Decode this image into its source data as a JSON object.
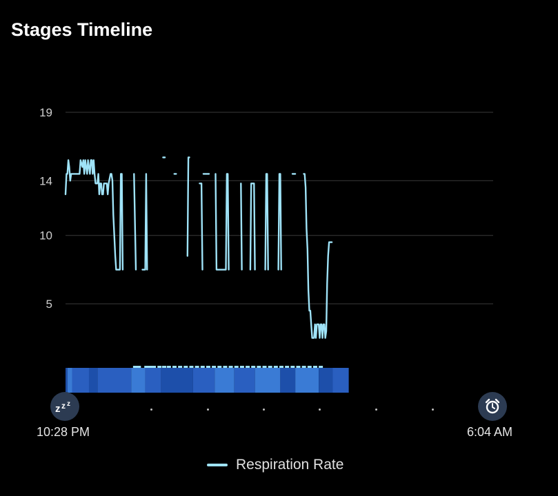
{
  "header": {
    "title": "Stages Timeline"
  },
  "chart_data": {
    "type": "line",
    "title": "Stages Timeline",
    "ylabel": "",
    "xlabel": "",
    "ylim": [
      0,
      19
    ],
    "yticks": [
      "19",
      "14",
      "10",
      "5"
    ],
    "ytick_values": [
      19,
      14,
      10,
      5
    ],
    "x_start_label": "10:28 PM",
    "x_end_label": "6:04 AM",
    "x_time_start": "22:28",
    "x_time_end": "06:04",
    "grid": true,
    "legend": "bottom",
    "series": [
      {
        "name": "Respiration Rate",
        "color": "#9fe3f8",
        "segments": [
          [
            [
              "22:28",
              13.0
            ],
            [
              "22:29",
              14.5
            ],
            [
              "22:30",
              14.5
            ],
            [
              "22:31",
              15.5
            ],
            [
              "22:32",
              15.0
            ],
            [
              "22:33",
              14.0
            ],
            [
              "22:34",
              14.5
            ],
            [
              "22:35",
              14.5
            ],
            [
              "22:40",
              14.5
            ],
            [
              "22:43",
              14.5
            ],
            [
              "22:44",
              15.5
            ],
            [
              "22:46",
              15.0
            ],
            [
              "22:47",
              15.5
            ],
            [
              "22:48",
              14.5
            ],
            [
              "22:49",
              15.5
            ],
            [
              "22:51",
              14.5
            ],
            [
              "22:52",
              15.5
            ],
            [
              "22:54",
              14.5
            ],
            [
              "22:55",
              15.5
            ],
            [
              "22:56",
              15.5
            ],
            [
              "22:57",
              14.5
            ],
            [
              "22:58",
              15.5
            ],
            [
              "22:59",
              14.5
            ],
            [
              "23:00",
              13.8
            ],
            [
              "23:02",
              13.8
            ],
            [
              "23:03",
              14.5
            ],
            [
              "23:04",
              13.0
            ],
            [
              "23:05",
              13.8
            ],
            [
              "23:06",
              13.8
            ],
            [
              "23:07",
              13.0
            ],
            [
              "23:08",
              13.0
            ],
            [
              "23:09",
              13.8
            ],
            [
              "23:12",
              13.8
            ],
            [
              "23:13",
              13.0
            ],
            [
              "23:14",
              13.8
            ],
            [
              "23:16",
              14.5
            ],
            [
              "23:17",
              14.5
            ],
            [
              "23:18",
              14.0
            ],
            [
              "23:19",
              11.5
            ],
            [
              "23:20",
              10.0
            ],
            [
              "23:21",
              8.5
            ],
            [
              "23:22",
              7.5
            ],
            [
              "23:23",
              7.5
            ],
            [
              "23:24",
              7.5
            ],
            [
              "23:25",
              7.5
            ],
            [
              "23:26",
              7.5
            ],
            [
              "23:27",
              14.5
            ],
            [
              "23:28",
              14.5
            ],
            [
              "23:29",
              7.5
            ]
          ],
          [
            [
              "23:41",
              14.5
            ],
            [
              "23:43",
              7.5
            ]
          ],
          [
            [
              "23:50",
              7.5
            ],
            [
              "23:53",
              7.5
            ],
            [
              "23:54",
              14.5
            ],
            [
              "23:55",
              7.5
            ]
          ],
          [
            [
              "00:12",
              15.7
            ],
            [
              "00:14",
              15.7
            ]
          ],
          [
            [
              "00:24",
              14.5
            ],
            [
              "00:26",
              14.5
            ]
          ],
          [
            [
              "00:38",
              8.5
            ],
            [
              "00:39",
              15.7
            ],
            [
              "00:40",
              15.7
            ]
          ],
          [
            [
              "00:51",
              13.8
            ],
            [
              "00:53",
              13.8
            ],
            [
              "00:54",
              7.5
            ]
          ],
          [
            [
              "00:55",
              14.5
            ],
            [
              "00:56",
              14.5
            ],
            [
              "01:01",
              14.5
            ]
          ],
          [
            [
              "01:08",
              14.5
            ],
            [
              "01:09",
              7.5
            ],
            [
              "01:10",
              7.5
            ],
            [
              "01:19",
              7.5
            ],
            [
              "01:20",
              14.5
            ],
            [
              "01:21",
              14.5
            ],
            [
              "01:22",
              7.5
            ]
          ],
          [
            [
              "01:35",
              13.8
            ],
            [
              "01:36",
              7.5
            ]
          ],
          [
            [
              "01:45",
              7.5
            ],
            [
              "01:46",
              13.8
            ],
            [
              "01:49",
              13.8
            ],
            [
              "01:50",
              7.5
            ]
          ],
          [
            [
              "02:01",
              7.5
            ],
            [
              "02:02",
              14.5
            ],
            [
              "02:03",
              14.5
            ],
            [
              "02:04",
              7.5
            ]
          ],
          [
            [
              "02:15",
              7.5
            ],
            [
              "02:16",
              14.5
            ],
            [
              "02:17",
              14.5
            ],
            [
              "02:18",
              7.5
            ]
          ],
          [
            [
              "02:30",
              14.5
            ],
            [
              "02:33",
              14.5
            ]
          ],
          [
            [
              "02:42",
              14.5
            ],
            [
              "02:43",
              14.5
            ],
            [
              "02:44",
              13.5
            ],
            [
              "02:45",
              10.5
            ],
            [
              "02:46",
              9.0
            ],
            [
              "02:47",
              6.0
            ],
            [
              "02:48",
              4.5
            ],
            [
              "02:49",
              4.5
            ],
            [
              "02:50",
              3.5
            ],
            [
              "02:51",
              2.5
            ],
            [
              "02:52",
              2.5
            ],
            [
              "02:53",
              2.5
            ],
            [
              "02:54",
              3.5
            ],
            [
              "02:55",
              2.5
            ],
            [
              "02:56",
              3.5
            ],
            [
              "02:57",
              3.5
            ],
            [
              "02:58",
              3.5
            ],
            [
              "02:59",
              2.5
            ],
            [
              "03:00",
              3.5
            ],
            [
              "03:01",
              3.5
            ],
            [
              "03:02",
              2.5
            ],
            [
              "03:03",
              3.5
            ],
            [
              "03:04",
              3.5
            ],
            [
              "03:05",
              2.5
            ],
            [
              "03:06",
              3.0
            ],
            [
              "03:07",
              6.5
            ],
            [
              "03:08",
              8.5
            ],
            [
              "03:09",
              9.5
            ],
            [
              "03:10",
              9.5
            ],
            [
              "03:12",
              9.5
            ]
          ]
        ]
      }
    ],
    "stage_bar": {
      "segments": [
        [
          "22:28",
          "22:30",
          "#1d4faa"
        ],
        [
          "22:30",
          "22:35",
          "#3a7bd5"
        ],
        [
          "22:35",
          "22:53",
          "#2a5fc0"
        ],
        [
          "22:53",
          "23:02",
          "#1d4faa"
        ],
        [
          "23:02",
          "23:38",
          "#2a5fc0"
        ],
        [
          "23:38",
          "23:53",
          "#3a7bd5"
        ],
        [
          "23:53",
          "24:10",
          "#2a5fc0"
        ],
        [
          "24:10",
          "24:44",
          "#1d4faa"
        ],
        [
          "24:44",
          "25:07",
          "#2a5fc0"
        ],
        [
          "25:07",
          "25:28",
          "#3a7bd5"
        ],
        [
          "25:28",
          "25:50",
          "#2a5fc0"
        ],
        [
          "25:50",
          "26:17",
          "#3a7bd5"
        ],
        [
          "26:17",
          "26:33",
          "#1d4faa"
        ],
        [
          "26:33",
          "26:58",
          "#3a7bd5"
        ],
        [
          "26:58",
          "27:13",
          "#1d4faa"
        ],
        [
          "27:13",
          "27:30",
          "#2a5fc0"
        ]
      ],
      "awake_markers": [
        "23:40",
        "23:44",
        "23:52",
        "23:56",
        "24:00",
        "24:06",
        "24:11",
        "24:16",
        "24:22",
        "24:28",
        "24:34",
        "24:40",
        "24:46",
        "24:52",
        "24:58",
        "25:04",
        "25:10",
        "25:16",
        "25:22",
        "25:28",
        "25:34",
        "25:40",
        "25:46",
        "25:52",
        "25:58",
        "26:04",
        "26:10",
        "26:16",
        "26:22",
        "26:28",
        "26:34",
        "26:40",
        "26:46",
        "26:52",
        "26:58"
      ]
    }
  },
  "timeline": {
    "start_label": "10:28 PM",
    "end_label": "6:04 AM",
    "start_icon": "sleep-zzz-icon",
    "end_icon": "alarm-clock-icon",
    "dot_count": 6
  },
  "legend": {
    "label": "Respiration Rate"
  }
}
